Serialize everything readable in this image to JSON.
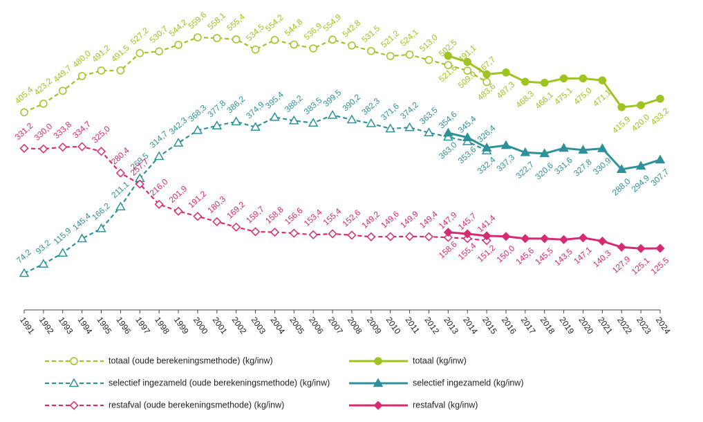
{
  "chart_data": {
    "type": "line",
    "categories": [
      "1991",
      "1992",
      "1993",
      "1994",
      "1995",
      "1996",
      "1997",
      "1998",
      "1999",
      "2000",
      "2001",
      "2002",
      "2003",
      "2004",
      "2005",
      "2006",
      "2007",
      "2008",
      "2009",
      "2010",
      "2011",
      "2012",
      "2013",
      "2014",
      "2015",
      "2016",
      "2017",
      "2018",
      "2019",
      "2020",
      "2021",
      "2022",
      "2023",
      "2024"
    ],
    "series": [
      {
        "name": "totaal (oude berekeningsmethode) (kg/inw)",
        "color": "#9fc31f",
        "dashed": true,
        "marker": "circle",
        "values": [
          405.4,
          423.2,
          449.7,
          480.0,
          491.2,
          491.5,
          527.2,
          530.7,
          544.2,
          559.6,
          558.1,
          555.4,
          534.5,
          554.2,
          544.8,
          536.9,
          554.9,
          542.8,
          531.5,
          521.2,
          524.1,
          513.0,
          502.5,
          491.1,
          467.7,
          null,
          null,
          null,
          null,
          null,
          null,
          null,
          null,
          null
        ],
        "value_labels": [
          "405,4",
          "423,2",
          "449,7",
          "480,0",
          "491,2",
          "491,5",
          "527,2",
          "530,7",
          "544,2",
          "559,6",
          "558,1",
          "555,4",
          "534,5",
          "554,2",
          "544,8",
          "536,9",
          "554,9",
          "542,8",
          "531,5",
          "521,2",
          "524,1",
          "513,0",
          "502,5",
          "491,1",
          "467,7",
          null,
          null,
          null,
          null,
          null,
          null,
          null,
          null,
          null
        ]
      },
      {
        "name": "totaal (kg/inw)",
        "color": "#9fc31f",
        "dashed": false,
        "marker": "circle",
        "values": [
          null,
          null,
          null,
          null,
          null,
          null,
          null,
          null,
          null,
          null,
          null,
          null,
          null,
          null,
          null,
          null,
          null,
          null,
          null,
          null,
          null,
          null,
          521.6,
          509.0,
          483.6,
          487.3,
          468.3,
          466.1,
          475.1,
          475.0,
          471.1,
          415.9,
          420.0,
          433.2
        ],
        "value_labels": [
          null,
          null,
          null,
          null,
          null,
          null,
          null,
          null,
          null,
          null,
          null,
          null,
          null,
          null,
          null,
          null,
          null,
          null,
          null,
          null,
          null,
          null,
          "521,6",
          "509,0",
          "483,6",
          "487,3",
          "468,3",
          "466,1",
          "475,1",
          "475,0",
          "471,1",
          "415,9",
          "420,0",
          "433,2"
        ]
      },
      {
        "name": "selectief ingezameld (oude berekeningsmethode) (kg/inw)",
        "color": "#2e9199",
        "dashed": true,
        "marker": "triangle",
        "values": [
          74.2,
          93.2,
          115.9,
          145.4,
          166.2,
          211.1,
          269.5,
          314.7,
          342.3,
          368.3,
          377.8,
          386.2,
          374.9,
          395.4,
          388.2,
          383.5,
          399.5,
          390.2,
          382.3,
          371.6,
          374.2,
          363.5,
          354.6,
          345.4,
          326.4,
          null,
          null,
          null,
          null,
          null,
          null,
          null,
          null,
          null
        ],
        "value_labels": [
          "74,2",
          "93,2",
          "115,9",
          "145,4",
          "166,2",
          "211,1",
          "269,5",
          "314,7",
          "342,3",
          "368,3",
          "377,8",
          "386,2",
          "374,9",
          "395,4",
          "388,2",
          "383,5",
          "399,5",
          "390,2",
          "382,3",
          "371,6",
          "374,2",
          "363,5",
          "354,6",
          "345,4",
          "326,4",
          null,
          null,
          null,
          null,
          null,
          null,
          null,
          null,
          null
        ]
      },
      {
        "name": "selectief ingezameld (kg/inw)",
        "color": "#2e9199",
        "dashed": false,
        "marker": "triangle",
        "values": [
          null,
          null,
          null,
          null,
          null,
          null,
          null,
          null,
          null,
          null,
          null,
          null,
          null,
          null,
          null,
          null,
          null,
          null,
          null,
          null,
          null,
          null,
          363.0,
          353.6,
          332.4,
          337.3,
          322.7,
          320.6,
          331.6,
          327.8,
          330.9,
          288.0,
          294.9,
          307.7
        ],
        "value_labels": [
          null,
          null,
          null,
          null,
          null,
          null,
          null,
          null,
          null,
          null,
          null,
          null,
          null,
          null,
          null,
          null,
          null,
          null,
          null,
          null,
          null,
          null,
          "363,0",
          "353,6",
          "332,4",
          "337,3",
          "322,7",
          "320,6",
          "331,6",
          "327,8",
          "330,9",
          "288,0",
          "294,9",
          "307,7"
        ]
      },
      {
        "name": "restafval (oude berekeningsmethode) (kg/inw)",
        "color": "#d82a72",
        "dashed": true,
        "marker": "diamond",
        "values": [
          331.2,
          330.0,
          333.8,
          334.7,
          325.0,
          280.4,
          257.7,
          216.0,
          201.9,
          191.2,
          180.3,
          169.2,
          159.7,
          158.8,
          156.6,
          153.4,
          155.4,
          152.6,
          149.2,
          149.6,
          149.9,
          149.4,
          147.9,
          145.7,
          141.4,
          null,
          null,
          null,
          null,
          null,
          null,
          null,
          null,
          null
        ],
        "value_labels": [
          "331,2",
          "330,0",
          "333,8",
          "334,7",
          "325,0",
          "280,4",
          "257,7",
          "216,0",
          "201,9",
          "191,2",
          "180,3",
          "169,2",
          "159,7",
          "158,8",
          "156,6",
          "153,4",
          "155,4",
          "152,6",
          "149,2",
          "149,6",
          "149,9",
          "149,4",
          "147,9",
          "145,7",
          "141,4",
          null,
          null,
          null,
          null,
          null,
          null,
          null,
          null,
          null
        ]
      },
      {
        "name": "restafval (kg/inw)",
        "color": "#d82a72",
        "dashed": false,
        "marker": "diamond",
        "values": [
          null,
          null,
          null,
          null,
          null,
          null,
          null,
          null,
          null,
          null,
          null,
          null,
          null,
          null,
          null,
          null,
          null,
          null,
          null,
          null,
          null,
          null,
          158.6,
          155.4,
          151.2,
          150.0,
          145.6,
          145.5,
          143.5,
          147.1,
          140.3,
          127.9,
          125.1,
          125.5
        ],
        "value_labels": [
          null,
          null,
          null,
          null,
          null,
          null,
          null,
          null,
          null,
          null,
          null,
          null,
          null,
          null,
          null,
          null,
          null,
          null,
          null,
          null,
          null,
          null,
          "158,6",
          "155,4",
          "151,2",
          "150,0",
          "145,6",
          "145,5",
          "143,5",
          "147,1",
          "140,3",
          "127,9",
          "125,1",
          "125,5"
        ]
      }
    ]
  }
}
